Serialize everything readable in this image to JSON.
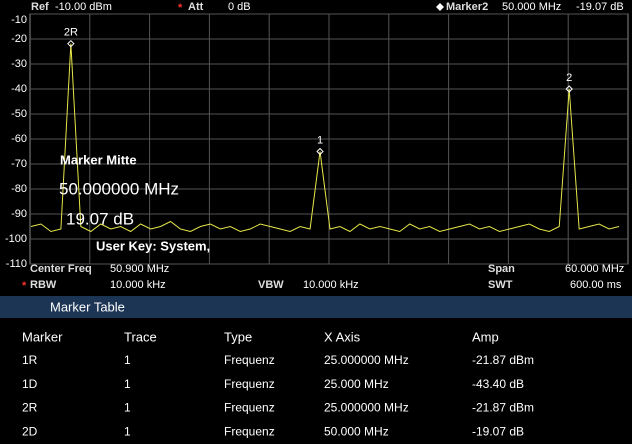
{
  "header": {
    "ref_label": "Ref",
    "ref_value": "-10.00 dBm",
    "att_flag": "*",
    "att_label": "Att",
    "att_value": "0 dB",
    "marker_label": "Marker2",
    "marker_freq": "50.000 MHz",
    "marker_amp": "-19.07 dB"
  },
  "chart_data": {
    "type": "line",
    "x": [
      21,
      22,
      23,
      24,
      25,
      26,
      27,
      28,
      29,
      30,
      31,
      32,
      33,
      34,
      35,
      36,
      37,
      38,
      39,
      40,
      41,
      42,
      43,
      44,
      45,
      46,
      47,
      48,
      49,
      50,
      51,
      52,
      53,
      54,
      55,
      56,
      57,
      58,
      59,
      60,
      61,
      62,
      63,
      64,
      65,
      66,
      67,
      68,
      69,
      70,
      71,
      72,
      73,
      74,
      75,
      76,
      77,
      78,
      79,
      80
    ],
    "series": [
      {
        "color": "#e6e64a",
        "values": [
          -95,
          -94,
          -97,
          -96,
          -21.87,
          -95,
          -97,
          -94,
          -96,
          -95,
          -97,
          -94,
          -96,
          -95,
          -93,
          -96,
          -97,
          -95,
          -94,
          -96,
          -95,
          -97,
          -96,
          -94,
          -95,
          -96,
          -97,
          -95,
          -96,
          -65,
          -96,
          -95,
          -97,
          -94,
          -96,
          -95,
          -96,
          -97,
          -94,
          -96,
          -95,
          -97,
          -96,
          -95,
          -94,
          -96,
          -95,
          -97,
          -96,
          -95,
          -94,
          -96,
          -97,
          -95,
          -40,
          -96,
          -95,
          -94,
          -96,
          -95
        ]
      }
    ],
    "markers": [
      {
        "label": "2R",
        "x": 25,
        "y": -21.87
      },
      {
        "label": "1",
        "x": 50,
        "y": -65
      },
      {
        "label": "2",
        "x": 75,
        "y": -40
      }
    ],
    "xlim": [
      20.9,
      80.9
    ],
    "ylim": [
      -110,
      -10
    ],
    "yticks": [
      -10,
      -20,
      -30,
      -40,
      -50,
      -60,
      -70,
      -80,
      -90,
      -100,
      -110
    ],
    "grid": true
  },
  "overlay": [
    "Marker Mitte",
    "50.000000 MHz",
    "19.07 dB",
    "User Key:   System,"
  ],
  "footer": {
    "center_label": "Center Freq",
    "center_value": "50.900 MHz",
    "span_label": "Span",
    "span_value": "60.000 MHz",
    "rbw_flag": "*",
    "rbw_label": "RBW",
    "rbw_value": "10.000 kHz",
    "vbw_label": "VBW",
    "vbw_value": "10.000 kHz",
    "swt_label": "SWT",
    "swt_value": "600.00 ms"
  },
  "table": {
    "title": "Marker Table",
    "columns": [
      "Marker",
      "Trace",
      "Type",
      "X Axis",
      "Amp"
    ],
    "rows": [
      [
        "1R",
        "1",
        "Frequenz",
        "25.000000 MHz",
        "-21.87 dBm"
      ],
      [
        "1D",
        "1",
        "Frequenz",
        "25.000 MHz",
        "-43.40 dB"
      ],
      [
        "2R",
        "1",
        "Frequenz",
        "25.000000 MHz",
        "-21.87 dBm"
      ],
      [
        "2D",
        "1",
        "Frequenz",
        "50.000 MHz",
        "-19.07 dB"
      ]
    ]
  }
}
